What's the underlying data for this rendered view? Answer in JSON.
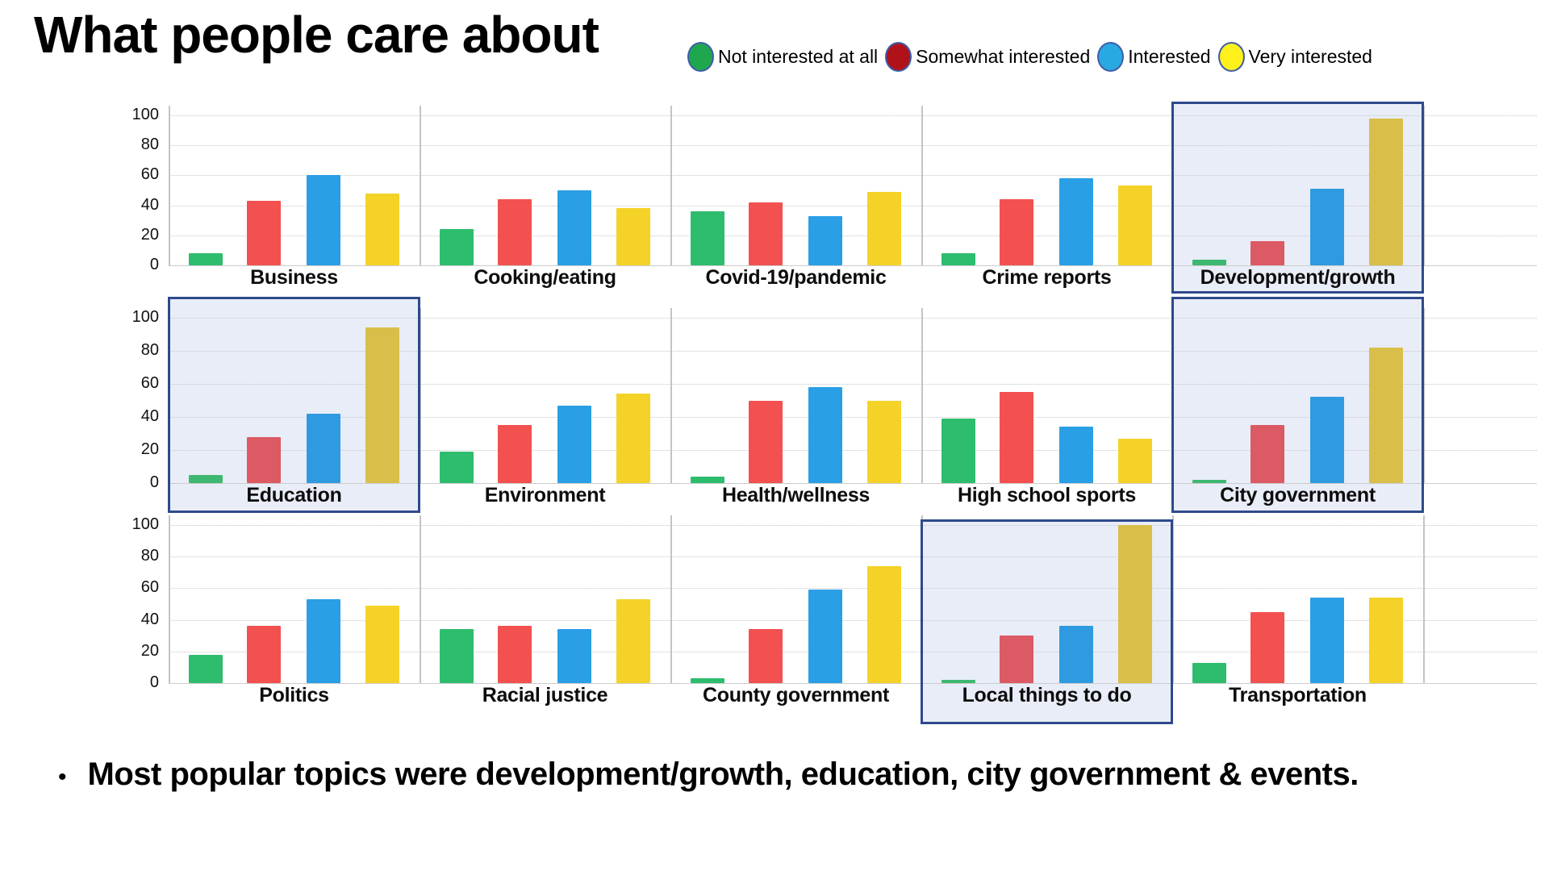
{
  "title": "What people care about",
  "legend": [
    {
      "label": "Not interested at all",
      "color": "#1fa750"
    },
    {
      "label": "Somewhat interested",
      "color": "#b0121a"
    },
    {
      "label": "Interested",
      "color": "#29a9e1"
    },
    {
      "label": "Very interested",
      "color": "#fdf01b"
    }
  ],
  "colors": {
    "bars": {
      "green": "#2ebd6e",
      "red": "#f2514f",
      "blue": "#2a9fe6",
      "yellow": "#f5d228"
    },
    "bars_muted": {
      "green": "#3eb871",
      "red": "#dc5a64",
      "blue": "#2f9adf",
      "yellow": "#d9bf4a"
    },
    "highlight_fill": "#e9edf7",
    "highlight_border": "#2e4a8c",
    "grid": "#c7c7c7",
    "axis": "#c4c4c4"
  },
  "chart_data": {
    "type": "bar",
    "series": [
      "Not interested at all",
      "Somewhat interested",
      "Interested",
      "Very interested"
    ],
    "series_color_keys": [
      "green",
      "red",
      "blue",
      "yellow"
    ],
    "y_ticks": [
      0,
      20,
      40,
      60,
      80,
      100
    ],
    "ylim": [
      0,
      100
    ],
    "grid": "dotted horizontal gridlines every 20",
    "legend_position": "top",
    "charts": [
      {
        "label": "Business",
        "values": [
          8,
          43,
          60,
          48
        ],
        "highlighted": false
      },
      {
        "label": "Cooking/eating",
        "values": [
          24,
          44,
          50,
          38
        ],
        "highlighted": false
      },
      {
        "label": "Covid-19/pandemic",
        "values": [
          36,
          42,
          33,
          49
        ],
        "highlighted": false
      },
      {
        "label": "Crime reports",
        "values": [
          8,
          44,
          58,
          53
        ],
        "highlighted": false
      },
      {
        "label": "Development/growth",
        "values": [
          4,
          16,
          51,
          98
        ],
        "highlighted": true
      },
      {
        "label": "Education",
        "values": [
          5,
          28,
          42,
          94
        ],
        "highlighted": true
      },
      {
        "label": "Environment",
        "values": [
          19,
          35,
          47,
          54
        ],
        "highlighted": false
      },
      {
        "label": "Health/wellness",
        "values": [
          4,
          50,
          58,
          50
        ],
        "highlighted": false
      },
      {
        "label": "High school sports",
        "values": [
          39,
          55,
          34,
          27
        ],
        "highlighted": false
      },
      {
        "label": "City government",
        "values": [
          2,
          35,
          52,
          82
        ],
        "highlighted": true
      },
      {
        "label": "Politics",
        "values": [
          18,
          36,
          53,
          49
        ],
        "highlighted": false
      },
      {
        "label": "Racial justice",
        "values": [
          34,
          36,
          34,
          53
        ],
        "highlighted": false
      },
      {
        "label": "County government",
        "values": [
          3,
          34,
          59,
          74
        ],
        "highlighted": false
      },
      {
        "label": "Local things to do",
        "values": [
          2,
          30,
          36,
          100
        ],
        "highlighted": true
      },
      {
        "label": "Transportation",
        "values": [
          13,
          45,
          54,
          54
        ],
        "highlighted": false
      }
    ]
  },
  "bullet": {
    "marker": "•",
    "text": "Most popular topics were development/growth, education, city government & events."
  }
}
